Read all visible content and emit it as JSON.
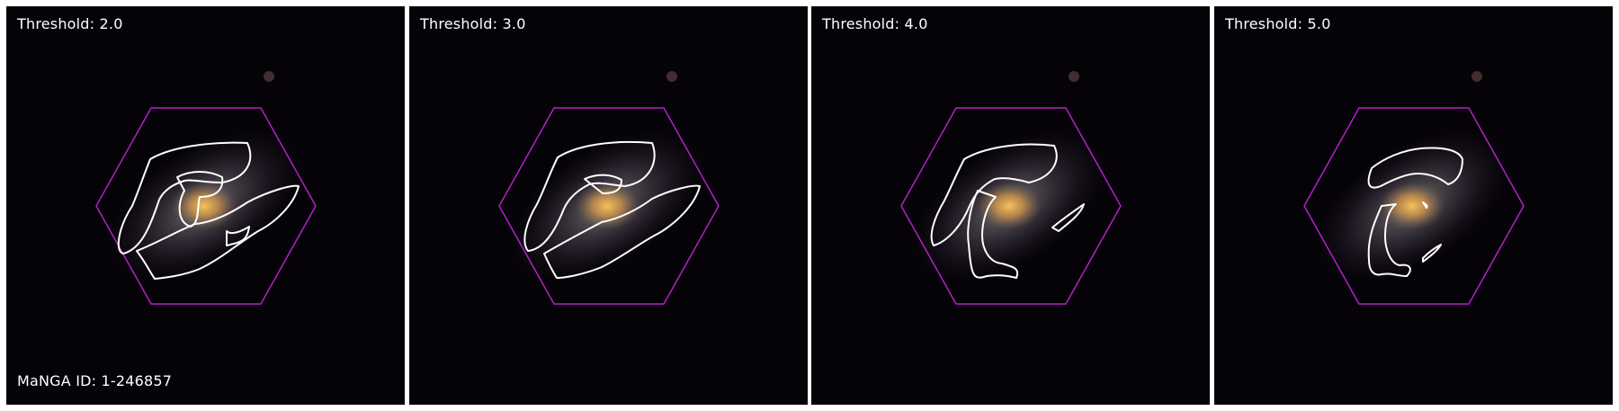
{
  "figure": {
    "panels": [
      {
        "label": "Threshold: 2.0"
      },
      {
        "label": "Threshold: 3.0"
      },
      {
        "label": "Threshold: 4.0"
      },
      {
        "label": "Threshold: 5.0"
      }
    ],
    "manga_id_label": "MaNGA ID: 1-246857"
  },
  "colors": {
    "hexagon": "#b51fc8",
    "contour": "#ffffff",
    "background": "#050307",
    "galaxy_core": "#f0b040"
  }
}
